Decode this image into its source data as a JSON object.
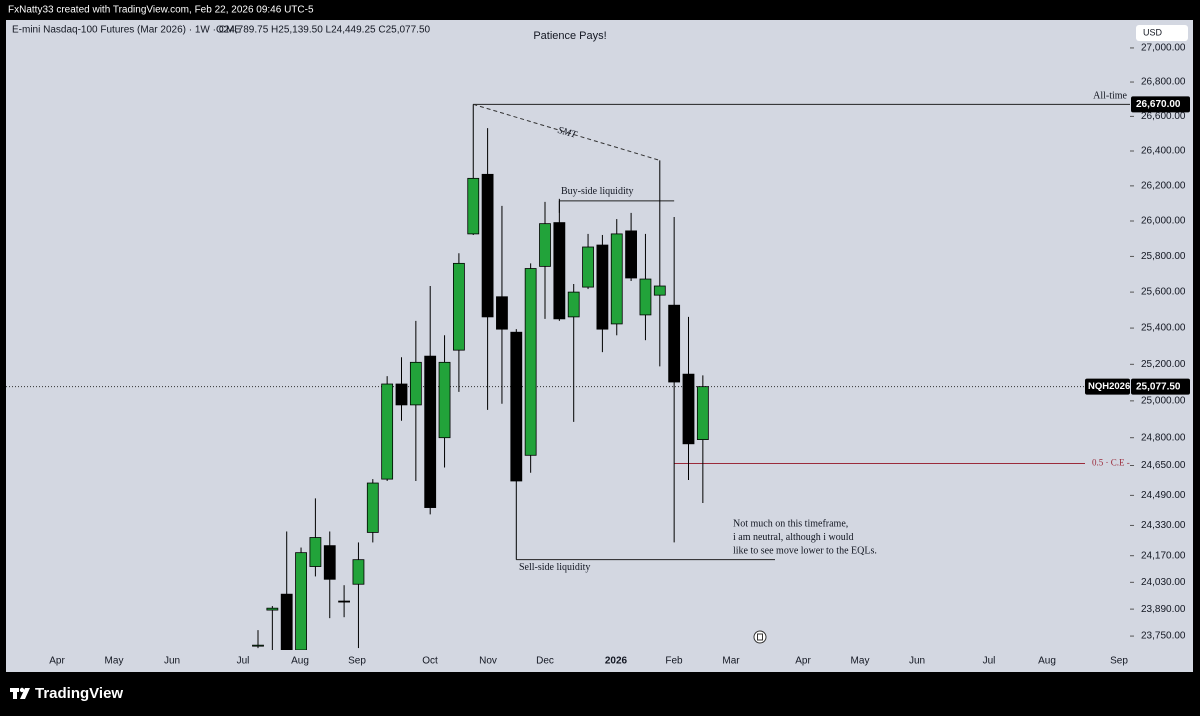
{
  "chart_data": {
    "type": "candlestick",
    "credit": "FxNatty33 created with TradingView.com, Feb 22, 2026 09:46 UTC-5",
    "symbol_title": "E-mini Nasdaq-100 Futures (Mar 2026) · 1W · CME",
    "ohlc_label": "O24,789.75 H25,139.50 L24,449.25 C25,077.50",
    "title": "Patience Pays!",
    "currency": "USD",
    "brand": "TradingView",
    "log_scale": true,
    "up_color": "#22a33a",
    "down_color": "#000000",
    "x_labels": [
      "Apr",
      "May",
      "Jun",
      "Jul",
      "Aug",
      "Sep",
      "Oct",
      "Nov",
      "Dec",
      "2026",
      "Feb",
      "Mar",
      "Apr",
      "May",
      "Jun",
      "Jul",
      "Aug",
      "Sep"
    ],
    "series": [
      {
        "name": "NQH2026",
        "open": [
          23698,
          23885,
          23968,
          23678,
          24113,
          24223,
          23932,
          24020,
          24293,
          24577,
          25092,
          24978,
          25245,
          24800,
          25278,
          25927,
          26266,
          25574,
          25377,
          24705,
          25744,
          25991,
          25462,
          25628,
          25864,
          25423,
          25944,
          25473,
          25583,
          25527,
          25146,
          24789.75
        ],
        "high": [
          23781,
          23906,
          24298,
          24213,
          24474,
          24298,
          24015,
          24240,
          24577,
          25135,
          25239,
          25440,
          25634,
          25360,
          25818,
          26670,
          26532,
          26086,
          25394,
          25761,
          26109,
          26126,
          25645,
          25927,
          25921,
          26011,
          26046,
          25927,
          26346,
          26023,
          25462,
          25139.5
        ],
        "low": [
          23688,
          23678,
          23678,
          23668,
          24061,
          23843,
          23848,
          23688,
          24240,
          24567,
          24892,
          24567,
          24389,
          24639,
          25049,
          25921,
          24951,
          24984,
          24149,
          24611,
          25451,
          25440,
          24886,
          25617,
          25267,
          25360,
          25662,
          25333,
          25189,
          24240,
          24572,
          24449.25
        ],
        "close": [
          23703,
          23895,
          23678,
          24186,
          24266,
          24046,
          23927,
          24149,
          24556,
          25092,
          24978,
          25211,
          24425,
          25211,
          25761,
          26243,
          25462,
          25394,
          24567,
          25732,
          25985,
          25451,
          25600,
          25853,
          25394,
          25927,
          25679,
          25673,
          25634,
          25103,
          24767,
          25077.5
        ]
      }
    ],
    "ylim": [
      23678,
      27165
    ],
    "yticks": [
      {
        "value": 27000,
        "label": "27,000.00"
      },
      {
        "value": 26800,
        "label": "26,800.00"
      },
      {
        "value": 26600,
        "label": "26,600.00"
      },
      {
        "value": 26400,
        "label": "26,400.00"
      },
      {
        "value": 26200,
        "label": "26,200.00"
      },
      {
        "value": 26000,
        "label": "26,000.00"
      },
      {
        "value": 25800,
        "label": "25,800.00"
      },
      {
        "value": 25600,
        "label": "25,600.00"
      },
      {
        "value": 25400,
        "label": "25,400.00"
      },
      {
        "value": 25200,
        "label": "25,200.00"
      },
      {
        "value": 25000,
        "label": "25,000.00"
      },
      {
        "value": 24800,
        "label": "24,800.00"
      },
      {
        "value": 24650,
        "label": "24,650.00"
      },
      {
        "value": 24490,
        "label": "24,490.00"
      },
      {
        "value": 24330,
        "label": "24,330.00"
      },
      {
        "value": 24170,
        "label": "24,170.00"
      },
      {
        "value": 24030,
        "label": "24,030.00"
      },
      {
        "value": 23890,
        "label": "23,890.00"
      },
      {
        "value": 23750,
        "label": "23,750.00"
      }
    ],
    "price_tags": {
      "ath": {
        "value": 26670,
        "label": "26,670.00"
      },
      "last": {
        "value": 25077.5,
        "label": "25,077.50"
      }
    },
    "annotations": {
      "all_time": "All-time",
      "smt": "SMT",
      "buy_side": "Buy-side liquidity",
      "sell_side": "Sell-side liquidity",
      "ce": "0.5 · C.E -",
      "note": [
        "Not much on this timeframe,",
        "i am neutral, although i would",
        "like to see move lower to the EQLs."
      ]
    }
  }
}
